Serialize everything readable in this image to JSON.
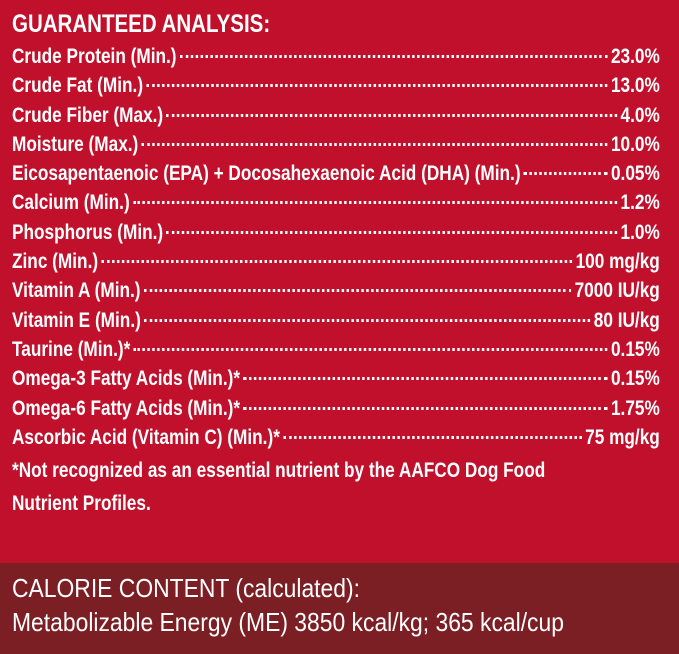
{
  "title": "GUARANTEED ANALYSIS:",
  "rows": [
    {
      "label": "Crude Protein (Min.)",
      "value": "23.0%"
    },
    {
      "label": "Crude Fat (Min.)",
      "value": "13.0%"
    },
    {
      "label": "Crude Fiber (Max.)",
      "value": "4.0%"
    },
    {
      "label": "Moisture (Max.)",
      "value": "10.0%"
    },
    {
      "label": "Eicosapentaenoic (EPA) + Docosahexaenoic Acid (DHA) (Min.)",
      "value": "0.05%"
    },
    {
      "label": "Calcium (Min.)",
      "value": "1.2%"
    },
    {
      "label": "Phosphorus (Min.)",
      "value": "1.0%"
    },
    {
      "label": "Zinc (Min.)",
      "value": "100 mg/kg"
    },
    {
      "label": "Vitamin A (Min.)",
      "value": "7000 IU/kg"
    },
    {
      "label": "Vitamin E (Min.)",
      "value": "80 IU/kg"
    },
    {
      "label": "Taurine (Min.)*",
      "value": "0.15%"
    },
    {
      "label": "Omega-3 Fatty Acids (Min.)*",
      "value": "0.15%"
    },
    {
      "label": "Omega-6 Fatty Acids (Min.)*",
      "value": "1.75%"
    },
    {
      "label": "Ascorbic Acid (Vitamin C) (Min.)*",
      "value": "75 mg/kg"
    }
  ],
  "footnote": [
    "*Not recognized as an essential nutrient by the AAFCO Dog Food",
    "Nutrient Profiles."
  ],
  "calorie": {
    "heading": "CALORIE CONTENT (calculated):",
    "text": "Metabolizable Energy (ME) 3850 kcal/kg;  365 kcal/cup"
  }
}
